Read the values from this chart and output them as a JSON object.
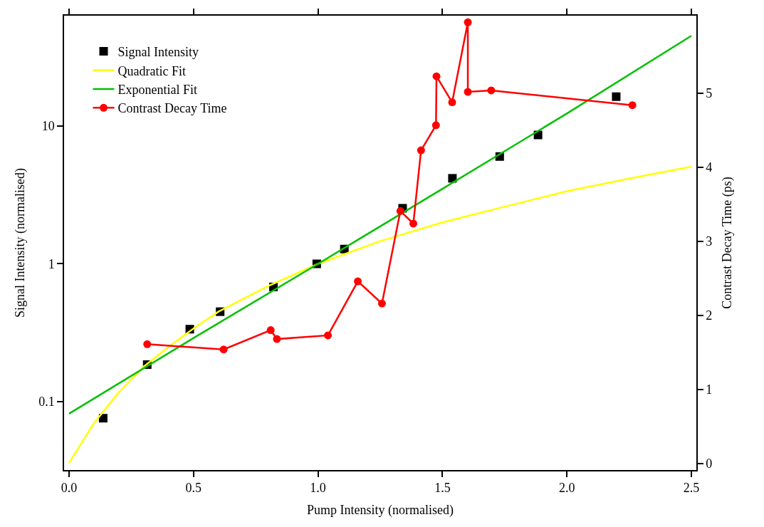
{
  "chart_data": {
    "type": "scatter",
    "xlabel": "Pump Intensity (normalised)",
    "ylabel": "Signal Intensity (normalised)",
    "y2label": "Contrast Decay Time (ps)",
    "xlim": [
      -0.02,
      2.52
    ],
    "xticks": [
      {
        "value": 0,
        "label": "0.0"
      },
      0.5,
      {
        "value": 1,
        "label": "1.0"
      },
      1.5,
      {
        "value": 2,
        "label": "2.0"
      },
      2.5
    ],
    "ylim": [
      0.032,
      63
    ],
    "yticks": [
      0.1,
      1,
      10
    ],
    "y2lim": [
      -0.09,
      6.05
    ],
    "y2ticks": [
      0,
      1,
      2,
      3,
      4,
      5
    ],
    "log": "y",
    "legend": "top left",
    "series": [
      {
        "name": "Signal Intensity",
        "marker": "square",
        "color": "#000000",
        "x": [
          0.137,
          0.314,
          0.485,
          0.607,
          0.821,
          0.995,
          1.106,
          1.34,
          1.54,
          1.73,
          1.884,
          2.198
        ],
        "values": [
          0.076,
          0.186,
          0.336,
          0.45,
          0.68,
          1.0,
          1.28,
          2.53,
          4.17,
          6.0,
          8.6,
          16.3
        ]
      },
      {
        "name": "Quadratic Fit",
        "type": "line",
        "marker": "none",
        "color": "#ffff00",
        "x": [
          0,
          0.1,
          0.2,
          0.3,
          0.4,
          0.5,
          0.6,
          0.8,
          1.0,
          1.25,
          1.5,
          1.75,
          2.0,
          2.25,
          2.5
        ],
        "values": [
          0.036,
          0.07,
          0.117,
          0.18,
          0.25,
          0.34,
          0.45,
          0.69,
          1.0,
          1.46,
          2.0,
          2.6,
          3.36,
          4.15,
          5.07
        ]
      },
      {
        "name": "Exponential Fit",
        "type": "line",
        "marker": "none",
        "color": "#00c000",
        "x": [
          0,
          0.5,
          1.0,
          1.5,
          2.0,
          2.5
        ],
        "values": [
          0.082,
          0.29,
          1.0,
          3.5,
          12.3,
          45
        ]
      },
      {
        "name": "Contrast Decay Time",
        "type": "line",
        "marker": "circle",
        "axis": "y2",
        "color": "#ff0000",
        "x": [
          0.314,
          0.621,
          0.81,
          0.835,
          1.04,
          1.16,
          1.257,
          1.331,
          1.383,
          1.414,
          1.474,
          1.476,
          1.539,
          1.602,
          1.602,
          1.696,
          2.263
        ],
        "values": [
          1.61,
          1.54,
          1.8,
          1.68,
          1.73,
          2.46,
          2.16,
          3.41,
          3.24,
          4.23,
          4.57,
          5.23,
          4.88,
          5.96,
          5.02,
          5.04,
          4.84
        ]
      }
    ]
  }
}
